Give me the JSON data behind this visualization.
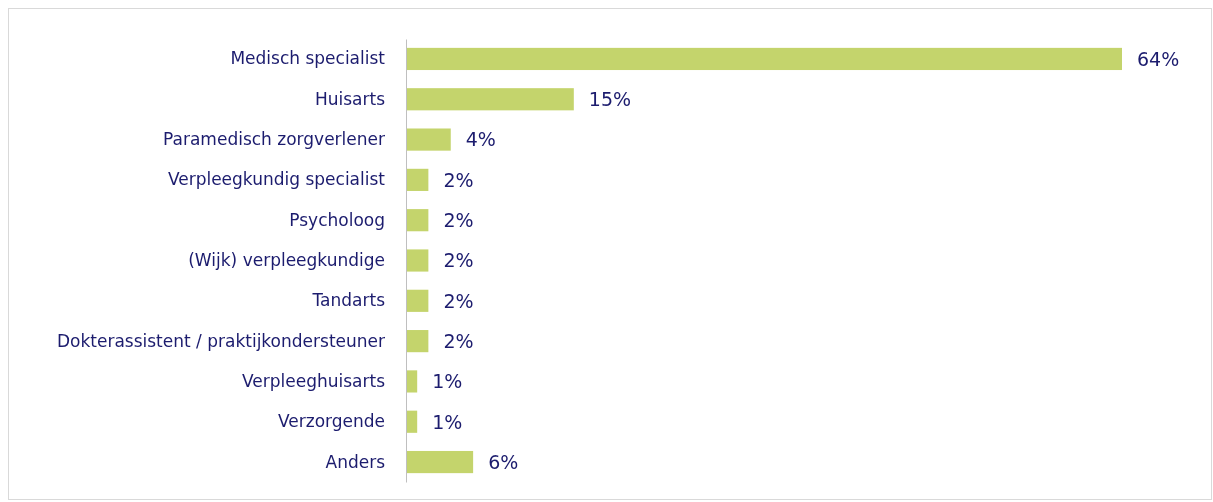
{
  "chart_data": {
    "type": "bar",
    "orientation": "horizontal",
    "categories": [
      "Medisch specialist",
      "Huisarts",
      "Paramedisch zorgverlener",
      "Verpleegkundig specialist",
      "Psycholoog",
      "(Wijk) verpleegkundige",
      "Tandarts",
      "Dokterassistent / praktijkondersteuner",
      "Verpleeghuisarts",
      "Verzorgende",
      "Anders"
    ],
    "values": [
      64,
      15,
      4,
      2,
      2,
      2,
      2,
      2,
      1,
      1,
      6
    ],
    "value_labels": [
      "64%",
      "15%",
      "4%",
      "2%",
      "2%",
      "2%",
      "2%",
      "2%",
      "1%",
      "1%",
      "6%"
    ],
    "color": "#c4d46c"
  }
}
